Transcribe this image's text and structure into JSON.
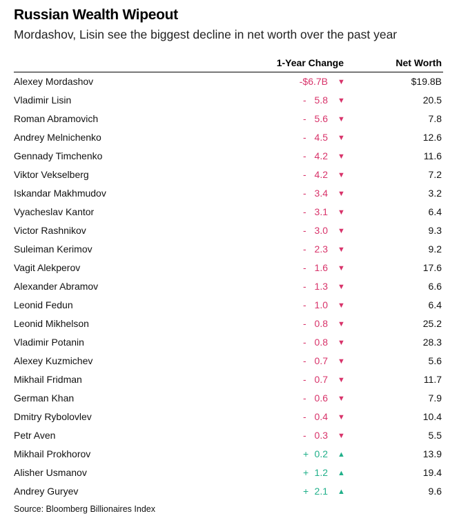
{
  "title": "Russian Wealth Wipeout",
  "subtitle": "Mordashov, Lisin see the biggest decline in net worth over the past year",
  "source": "Source: Bloomberg Billionaires Index",
  "colors": {
    "negative": "#d8336a",
    "positive": "#21b08a"
  },
  "chart_data": {
    "type": "table",
    "columns": [
      "",
      "1-Year Change",
      "Net Worth"
    ],
    "units": "USD billions",
    "rows": [
      {
        "name": "Alexey Mordashov",
        "change": -6.7,
        "change_label": "-$6.7B",
        "net_worth": 19.8,
        "net_worth_label": "$19.8B"
      },
      {
        "name": "Vladimir Lisin",
        "change": -5.8,
        "change_label": "5.8",
        "net_worth": 20.5,
        "net_worth_label": "20.5"
      },
      {
        "name": "Roman Abramovich",
        "change": -5.6,
        "change_label": "5.6",
        "net_worth": 7.8,
        "net_worth_label": "7.8"
      },
      {
        "name": "Andrey Melnichenko",
        "change": -4.5,
        "change_label": "4.5",
        "net_worth": 12.6,
        "net_worth_label": "12.6"
      },
      {
        "name": "Gennady Timchenko",
        "change": -4.2,
        "change_label": "4.2",
        "net_worth": 11.6,
        "net_worth_label": "11.6"
      },
      {
        "name": "Viktor Vekselberg",
        "change": -4.2,
        "change_label": "4.2",
        "net_worth": 7.2,
        "net_worth_label": "7.2"
      },
      {
        "name": "Iskandar Makhmudov",
        "change": -3.4,
        "change_label": "3.4",
        "net_worth": 3.2,
        "net_worth_label": "3.2"
      },
      {
        "name": "Vyacheslav Kantor",
        "change": -3.1,
        "change_label": "3.1",
        "net_worth": 6.4,
        "net_worth_label": "6.4"
      },
      {
        "name": "Victor Rashnikov",
        "change": -3.0,
        "change_label": "3.0",
        "net_worth": 9.3,
        "net_worth_label": "9.3"
      },
      {
        "name": "Suleiman Kerimov",
        "change": -2.3,
        "change_label": "2.3",
        "net_worth": 9.2,
        "net_worth_label": "9.2"
      },
      {
        "name": "Vagit Alekperov",
        "change": -1.6,
        "change_label": "1.6",
        "net_worth": 17.6,
        "net_worth_label": "17.6"
      },
      {
        "name": "Alexander Abramov",
        "change": -1.3,
        "change_label": "1.3",
        "net_worth": 6.6,
        "net_worth_label": "6.6"
      },
      {
        "name": "Leonid Fedun",
        "change": -1.0,
        "change_label": "1.0",
        "net_worth": 6.4,
        "net_worth_label": "6.4"
      },
      {
        "name": "Leonid Mikhelson",
        "change": -0.8,
        "change_label": "0.8",
        "net_worth": 25.2,
        "net_worth_label": "25.2"
      },
      {
        "name": "Vladimir Potanin",
        "change": -0.8,
        "change_label": "0.8",
        "net_worth": 28.3,
        "net_worth_label": "28.3"
      },
      {
        "name": "Alexey Kuzmichev",
        "change": -0.7,
        "change_label": "0.7",
        "net_worth": 5.6,
        "net_worth_label": "5.6"
      },
      {
        "name": "Mikhail Fridman",
        "change": -0.7,
        "change_label": "0.7",
        "net_worth": 11.7,
        "net_worth_label": "11.7"
      },
      {
        "name": "German Khan",
        "change": -0.6,
        "change_label": "0.6",
        "net_worth": 7.9,
        "net_worth_label": "7.9"
      },
      {
        "name": "Dmitry Rybolovlev",
        "change": -0.4,
        "change_label": "0.4",
        "net_worth": 10.4,
        "net_worth_label": "10.4"
      },
      {
        "name": "Petr Aven",
        "change": -0.3,
        "change_label": "0.3",
        "net_worth": 5.5,
        "net_worth_label": "5.5"
      },
      {
        "name": "Mikhail Prokhorov",
        "change": 0.2,
        "change_label": "0.2",
        "net_worth": 13.9,
        "net_worth_label": "13.9"
      },
      {
        "name": "Alisher Usmanov",
        "change": 1.2,
        "change_label": "1.2",
        "net_worth": 19.4,
        "net_worth_label": "19.4"
      },
      {
        "name": "Andrey Guryev",
        "change": 2.1,
        "change_label": "2.1",
        "net_worth": 9.6,
        "net_worth_label": "9.6"
      }
    ]
  }
}
